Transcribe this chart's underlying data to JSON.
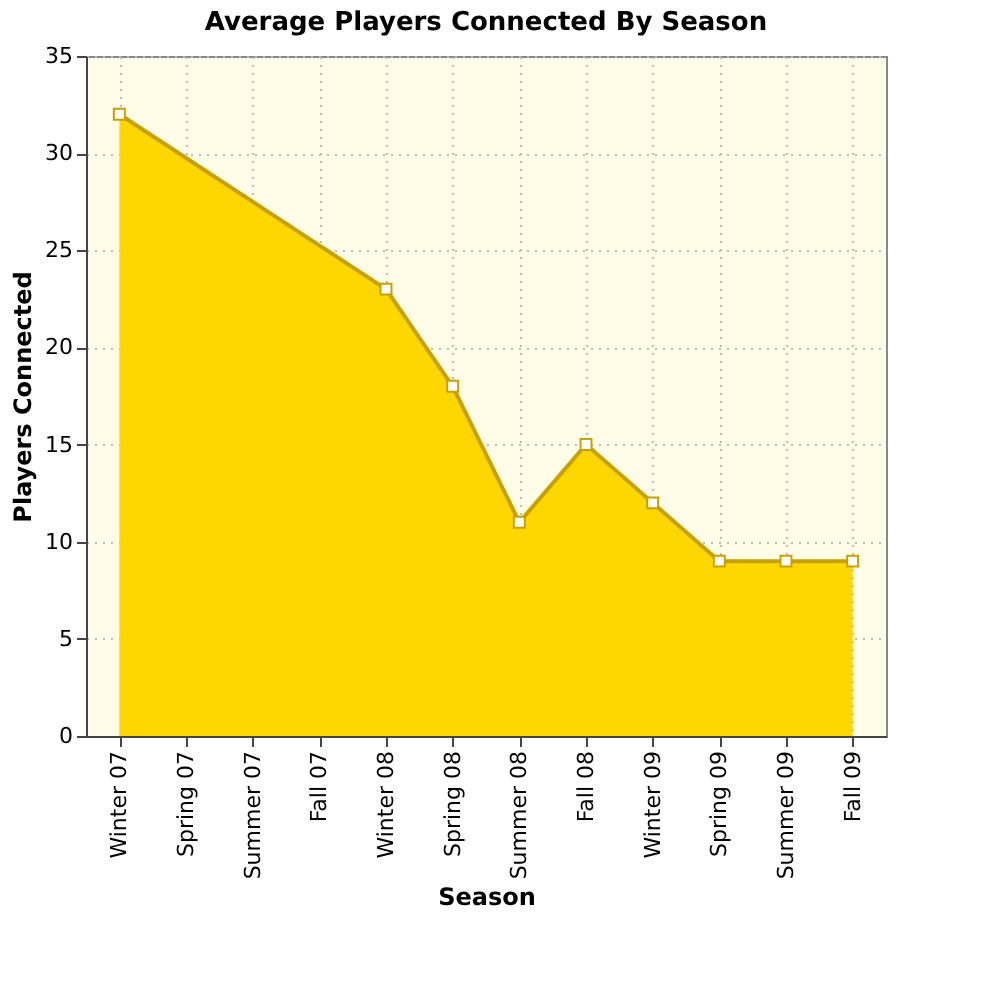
{
  "chart_data": {
    "type": "area",
    "title": "Average Players Connected By Season",
    "xlabel": "Season",
    "ylabel": "Players Connected",
    "categories": [
      "Winter 07",
      "Spring 07",
      "Summer 07",
      "Fall 07",
      "Winter 08",
      "Spring 08",
      "Summer 08",
      "Fall 08",
      "Winter 09",
      "Spring 09",
      "Summer 09",
      "Fall 09"
    ],
    "series": [
      {
        "color": "#ffd700",
        "values": [
          32,
          null,
          null,
          null,
          23,
          18,
          11,
          15,
          12,
          9,
          9,
          9
        ]
      }
    ],
    "ylim": [
      0,
      35
    ],
    "yticks": [
      0,
      5,
      10,
      15,
      20,
      25,
      30,
      35
    ],
    "grid": true,
    "marker": "square"
  }
}
